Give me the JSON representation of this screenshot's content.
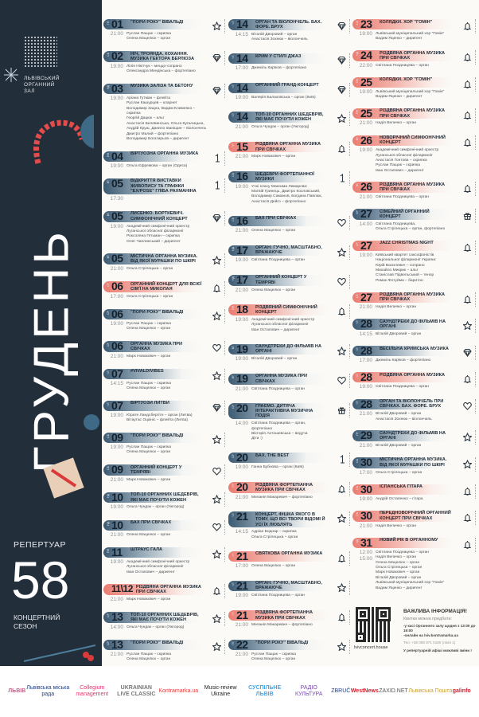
{
  "hall_name": [
    "ЛЬВІВСЬКИЙ",
    "ОРГАННИЙ",
    "ЗАЛ"
  ],
  "month": "ГРУДЕНЬ",
  "repertoire": "РЕПЕРТУАР",
  "season_number": "58",
  "season_label": [
    "КОНЦЕРТНИЙ",
    "СЕЗОН"
  ],
  "colors": {
    "panel": "#232e3b",
    "regular": "#3c5a72",
    "festive": "#ea7d72"
  },
  "columns": [
    [
      {
        "d": "01",
        "wd": "ПТ",
        "t": [
          "21:00"
        ],
        "title": "\"ПОРИ РОКУ\" ВІВАЛЬДІ",
        "perf": [
          "Руслан Пащак – скрипка",
          "Олена Мацелюх – орган"
        ],
        "icon": "star"
      },
      {
        "d": "02",
        "wd": "СБ",
        "t": [
          "19:00"
        ],
        "title": "НІЧ, ТРОЯНДА, КОХАННЯ. МУЗИКА ГЕКТОРА БЕРЛІОЗА",
        "perf": [
          "Лілія Нікітчук – меццо-сопрано",
          "Олександра Мендінська – фортепіано"
        ],
        "icon": "diamond"
      },
      {
        "d": "03",
        "wd": "НД",
        "t": [
          "19:00"
        ],
        "title": "МУЗИКА ЗАЛІЗА ТА БЕТОНУ",
        "perf": [
          "Аріана Гутман – флейта",
          "Руслан Кашурцев – кларнет",
          "Володимир Зацна, Вадим Клименко – скрипка",
          "Георгій Дацюк – альт",
          "Анастасія Белевинська, Ольга Кульчицька,",
          "Андрій Круш, Данило Іваніщин – віолончель",
          "Дмитро Малий – фортепіано",
          "Володимир Богатирьов – диригент"
        ],
        "icon": "diamond"
      },
      {
        "d": "04",
        "wd": "ПН",
        "t": [
          "19:00"
        ],
        "title": "ВІРТУОЗНА ОРГАННА МУЗИКА",
        "perf": [
          "Ольга Єфремова – орган (Одеса)"
        ],
        "icon": "one"
      },
      {
        "d": "05",
        "wd": "ВТ",
        "t": [
          "17:30"
        ],
        "title": "ВІДКРИТТЯ ВИСТАВКИ ЖИВОПИСУ ТА ГРАФІКИ \"EX/POSE\" ГЛІБА РАХМАНІНА",
        "perf": [],
        "icon": "one"
      },
      {
        "d": "05",
        "wd": "ВТ",
        "t": [
          "19:00"
        ],
        "title": "ЛИСЕНКО. БОРТКЕВИЧ. СИМФОНІЧНИЙ КОНЦЕРТ",
        "perf": [
          "Академічний симфонічний оркестр",
          "Луганської обласної філармонії",
          "Роксоляна Гетьман – скрипка",
          "Олег Чаплинський – диригент"
        ],
        "icon": "diamond"
      },
      {
        "d": "05",
        "wd": "ВТ",
        "t": [
          "21:00"
        ],
        "title": "МІСТИЧНА ОРГАННА МУЗИКА. ВІД ЯКОЇ МУРАШКИ ПО ШКІРІ",
        "perf": [
          "Ольга Стрілецька – орган"
        ],
        "icon": "star"
      },
      {
        "d": "06",
        "wd": "СР",
        "t": [
          "17:00"
        ],
        "title": "ОРГАННИЙ КОНЦЕРТ ДЛЯ ВСІЄЇ СІМ'Ї НА МИКОЛАЯ",
        "perf": [
          "Ольга Стрілецька – орган"
        ],
        "icon": "bell",
        "red": true
      },
      {
        "d": "06",
        "wd": "СР",
        "t": [
          "19:00"
        ],
        "title": "\"ПОРИ РОКУ\" ВІВАЛЬДІ",
        "perf": [
          "Руслан Пащак – скрипка",
          "Олена Мацелюх – орган"
        ],
        "icon": "star"
      },
      {
        "d": "06",
        "wd": "СР",
        "t": [
          "21:00"
        ],
        "title": "ОРГАННА МУЗИКА ПРИ СВІЧКАХ",
        "perf": [
          "Марк Новакович – орган"
        ],
        "icon": "heart"
      },
      {
        "d": "07",
        "wd": "ЧТ",
        "t": [
          "14:15"
        ],
        "title": "#VIVALDIVIBES",
        "perf": [
          "Руслан Пащак – скрипка",
          "Олена Мацелюх – орган"
        ],
        "icon": "star"
      },
      {
        "d": "07",
        "wd": "ЧТ",
        "t": [
          "19:00"
        ],
        "title": "ВІРТУОЗИ ЛИТВИ",
        "perf": [
          "Юрате Ландсбергіте – орган (Литва)",
          "Вітаутас Оцкініс – флейта (Литва)"
        ],
        "icon": "diamond"
      },
      {
        "d": "09",
        "wd": "СБ",
        "t": [
          "19:00"
        ],
        "title": "\"ПОРИ РОКУ\" ВІВАЛЬДІ",
        "perf": [
          "Руслан Пащак – скрипка",
          "Олена Мацелюх – орган"
        ],
        "icon": "star"
      },
      {
        "d": "09",
        "wd": "СБ",
        "t": [
          "21:00"
        ],
        "title": "ОРГАННИЙ КОНЦЕРТ У ТЕМРЯВІ",
        "perf": [
          "Марк Новакович – орган"
        ],
        "icon": "heart"
      },
      {
        "d": "10",
        "wd": "НД",
        "t": [
          "19:00"
        ],
        "title": "ТОП-10 ОРГАННИХ ШЕДЕВРІВ, ЯКІ МАЄ ПОЧУТИ КОЖЕН",
        "perf": [
          "Ольга Чундак – орган (Ужгород)"
        ],
        "icon": "star"
      },
      {
        "d": "10",
        "wd": "НД",
        "t": [
          "21:00"
        ],
        "title": "БАХ ПРИ СВІЧКАХ",
        "perf": [
          "Олена Мацелюх – орган"
        ],
        "icon": "heart"
      },
      {
        "d": "11",
        "wd": "ПН",
        "t": [
          "19:00"
        ],
        "title": "ШТРАУС ГАЛА",
        "perf": [
          "Академічний симфонічний оркестр",
          "Луганської обласної філармонії",
          "Іван Остапович – диригент"
        ],
        "icon": "star"
      },
      {
        "d": "11\\12",
        "wd": "",
        "t": [
          "21:00"
        ],
        "title": "РІЗДВЯНА ОРГАННА МУЗИКА ПРИ СВІЧКАХ",
        "perf": [
          "Марк Новакович – орган"
        ],
        "icon": "bell",
        "red": true
      },
      {
        "d": "13",
        "wd": "СР",
        "t": [
          "14:00"
        ],
        "title": "ТОП-10 ОРГАННИХ ШЕДЕВРІВ, ЯКІ МАЄ ПОЧУТИ КОЖЕН",
        "perf": [
          "Ольга Чундак – орган (Ужгород)"
        ],
        "icon": "star"
      },
      {
        "d": "13",
        "wd": "СР",
        "t": [
          "21:00"
        ],
        "title": "\"ПОРИ РОКУ\" ВІВАЛЬДІ",
        "perf": [
          "Руслан Пащак – скрипка",
          "Олена Мацелюх – орган"
        ],
        "icon": "star"
      }
    ],
    [
      {
        "d": "14",
        "wd": "ЧТ",
        "t": [
          "14:15"
        ],
        "title": "ОРГАН ТА ВІОЛОНЧЕЛЬ. БАХ. ФОРЕ. БРУХ",
        "perf": [
          "Віталій Дворовий – орган",
          "Анастасія Зохнюк – віолончель"
        ],
        "icon": "diamond"
      },
      {
        "d": "14",
        "wd": "ЧТ",
        "t": [
          "17:00"
        ],
        "title": "КРИМ У СТИЛІ ДЖАЗ",
        "perf": [
          "Джеміль Карїков – фортепіано"
        ],
        "icon": "diamond"
      },
      {
        "d": "14",
        "wd": "ЧТ",
        "t": [
          "19:00"
        ],
        "title": "ОРГАННИЙ ГРАНД-КОНЦЕРТ",
        "perf": [
          "Валерія Балаховська – орган (Київ)"
        ],
        "icon": "diamond"
      },
      {
        "d": "14",
        "wd": "ЧТ",
        "t": [
          "21:00"
        ],
        "title": "ТОП-10 ОРГАННИХ ШЕДЕВРІВ, ЯКІ МАЄ ПОЧУТИ КОЖЕН",
        "perf": [
          "Ольга Чундак – орган (Ужгород)"
        ],
        "icon": "star"
      },
      {
        "d": "15",
        "wd": "ПТ",
        "t": [
          "21:00"
        ],
        "title": "РІЗДВЯНА ОРГАННА МУЗИКА ПРИ СВІЧКАХ",
        "perf": [
          "Марк Новакович – орган"
        ],
        "icon": "bell",
        "red": true
      },
      {
        "d": "16",
        "wd": "СБ",
        "t": [
          "19:00"
        ],
        "title": "ШЕДЕВРИ ФОРТЕПІАННОЇ МУЗИКИ",
        "perf": [
          "Учні класу Максима Лимарєва:",
          "Матвій Гринець, Дмитро Козловський,",
          "Володимир Саманов, Богдана Павлюк,",
          "Анастасія Дейго – фортепіано"
        ],
        "icon": "one"
      },
      {
        "d": "16",
        "wd": "СБ",
        "t": [
          "21:00"
        ],
        "title": "БАХ ПРИ СВІЧКАХ",
        "perf": [
          "Олена Мацелюх – орган"
        ],
        "icon": "heart"
      },
      {
        "d": "17",
        "wd": "НД",
        "t": [
          "19:00"
        ],
        "title": "ОРГАН: ГУЧНО, МАСШТАБНО, ВРАЖАЮЧЕ",
        "perf": [
          "Світлана Поздницева – орган"
        ],
        "icon": "star"
      },
      {
        "d": "17",
        "wd": "НД",
        "t": [
          "21:00"
        ],
        "title": "ОРГАННИЙ КОНЦЕРТ У ТЕМРЯВІ",
        "perf": [
          "Олена Мацелюх – орган"
        ],
        "icon": "heart"
      },
      {
        "d": "18",
        "wd": "ПН",
        "t": [
          "19:00"
        ],
        "title": "РІЗДВЯНИЙ СИМФОНІЧНИЙ КОНЦЕРТ",
        "perf": [
          "Академічний симфонічний оркестр",
          "Луганської обласної філармонії",
          "Іван Остапович – диригент"
        ],
        "icon": "bell",
        "red": true
      },
      {
        "d": "19",
        "wd": "ВТ",
        "t": [
          "19:00"
        ],
        "title": "САУНДТРЕКИ ДО ФІЛЬМІВ НА ОРГАНІ",
        "perf": [
          "Віталій Дворовий – орган"
        ],
        "icon": "star"
      },
      {
        "d": "19",
        "wd": "ВТ",
        "t": [
          "21:00"
        ],
        "title": "ОРГАННА МУЗИКА ПРИ СВІЧКАХ",
        "perf": [
          "Світлана Поздницева – орган"
        ],
        "icon": "heart"
      },
      {
        "d": "20",
        "wd": "СР",
        "t": [
          "14:00"
        ],
        "title": "ГРАЄМО. ДИТЯЧА ІНТЕРАКТИВНА МУЗИЧНА ПОДІЯ",
        "perf": [
          "Світлана Поздницева – орган,",
          "фортепіано",
          "Вікторія Антошевська – ведуча",
          "Діти :)"
        ],
        "icon": "gift"
      },
      {
        "d": "20",
        "wd": "СР",
        "t": [
          "19:00"
        ],
        "title": "БАХ. THE BEST",
        "perf": [
          "Ганна Бубнова – орган (Київ)"
        ],
        "icon": "one"
      },
      {
        "d": "20",
        "wd": "СР",
        "t": [
          "21:00"
        ],
        "title": "РІЗДВЯНА ФОРТЕПІАННА МУЗИКА ПРИ СВІЧКАХ",
        "perf": [
          "Меланія Макаревич – фортепіано"
        ],
        "icon": "bell",
        "red": true
      },
      {
        "d": "21",
        "wd": "ЧТ",
        "t": [
          "14:15"
        ],
        "title": "КОНЦЕРТ, ФІШКА ЯКОГО В ТОМУ, ЩО ВСІ ТВОРИ ВІДОМІ Й УСІ ЇХ ЛЮБЛЯТЬ",
        "perf": [
          "Адріан Боднар – скрипка",
          "Ольга Стрілецька – орган"
        ],
        "icon": "star"
      },
      {
        "d": "21",
        "wd": "ЧТ",
        "t": [
          "17:00"
        ],
        "title": "СВЯТКОВА ОРГАННА МУЗИКА",
        "perf": [
          "Олена Мацелюх – орган"
        ],
        "icon": "bell",
        "red": true
      },
      {
        "d": "21",
        "wd": "ЧТ",
        "t": [
          "19:00"
        ],
        "title": "ОРГАН: ГУЧНО, МАСШТАБНО, ВРАЖАЮЧЕ",
        "perf": [
          "Світлана Поздницева – орган"
        ],
        "icon": "star"
      },
      {
        "d": "21",
        "wd": "ЧТ",
        "t": [
          "21:00"
        ],
        "title": "РІЗДВЯНА ФОРТЕПІАННА МУЗИКА ПРИ СВІЧКАХ",
        "perf": [
          "Меланія Макаревич – фортепіано"
        ],
        "icon": "bell",
        "red": true
      },
      {
        "d": "22",
        "wd": "ПТ",
        "t": [
          "21:00"
        ],
        "title": "\"ПОРИ РОКУ\" ВІВАЛЬДІ",
        "perf": [
          "Руслан Пащак – скрипка",
          "Олена Мацелюх – орган"
        ],
        "icon": "star"
      }
    ],
    [
      {
        "d": "23",
        "wd": "СБ",
        "t": [
          "19:00"
        ],
        "title": "КОЛЯДКИ. ХОР \"ГОМІН\"",
        "perf": [
          "Львівський муніципальний хор \"Гомін\"",
          "Вадим Яценко – диригент"
        ],
        "icon": "bell",
        "red": true
      },
      {
        "d": "24",
        "wd": "НД",
        "t": [
          "22:00"
        ],
        "title": "РІЗДВЯНА ОРГАННА МУЗИКА ПРИ СВІЧКАХ",
        "perf": [
          "Світлана Поздницева – орган"
        ],
        "icon": "bell",
        "red": true
      },
      {
        "d": "25",
        "wd": "ПН",
        "t": [
          "19:00"
        ],
        "title": "КОЛЯДКИ. ХОР \"ГОМІН\"",
        "perf": [
          "Львівський муніципальний хор \"Гомін\"",
          "Вадим Яценко – диригент"
        ],
        "icon": "bell",
        "red": true
      },
      {
        "d": "25",
        "wd": "ПН",
        "t": [
          "21:00"
        ],
        "title": "РІЗДВЯНА ОРГАННА МУЗИКА ПРИ СВІЧКАХ",
        "perf": [
          "Надія Величко – орган"
        ],
        "icon": "bell",
        "red": true
      },
      {
        "d": "26",
        "wd": "ВТ",
        "t": [
          "19:00"
        ],
        "title": "НОВОРІЧНИЙ СИМФОНІЧНИЙ КОНЦЕРТ",
        "perf": [
          "Академічний симфонічний оркестр",
          "Луганської обласної філармонії",
          "Анастасія Гонтова – скрипка",
          "Руслан Пащак – скрипка",
          "Іван Остапович – диригент"
        ],
        "icon": "bell",
        "red": true
      },
      {
        "d": "26",
        "wd": "ВТ",
        "t": [
          "21:00"
        ],
        "title": "РІЗДВЯНА ОРГАННА МУЗИКА ПРИ СВІЧКАХ",
        "perf": [
          "Світлана Поздницева – орган"
        ],
        "icon": "bell",
        "red": true
      },
      {
        "d": "27",
        "wd": "СР",
        "t": [
          "14:00"
        ],
        "title": "СІМЕЙНИЙ ОРГАННИЙ КОНЦЕРТ",
        "perf": [
          "Світлана Поздницева,",
          "Ольга Стрілецька – орган, фортепіано"
        ],
        "icon": "gift"
      },
      {
        "d": "27",
        "wd": "СР",
        "t": [
          "19:00"
        ],
        "title": "JAZZ CHRISTMAS NIGHT",
        "perf": [
          "Київський квартет саксофоністів",
          "Національної філармонії України:",
          "Юрій Василевич – сопрано",
          "Михайло Микрик – альт",
          "Станіслав Підвельський – тенор",
          "Роман Фотуйма – баритон"
        ],
        "icon": "bell",
        "red": true
      },
      {
        "d": "27",
        "wd": "СР",
        "t": [
          "21:00"
        ],
        "title": "РІЗДВЯНА ОРГАННА МУЗИКА ПРИ СВІЧКАХ",
        "perf": [
          "Надія Величко – орган"
        ],
        "icon": "bell",
        "red": true
      },
      {
        "d": "28",
        "wd": "ЧТ",
        "t": [
          "14:15"
        ],
        "title": "САУНДТРЕКИ ДО ФІЛЬМІВ НА ОРГАНІ",
        "perf": [
          "Віталій Дворовий – орган"
        ],
        "icon": "star"
      },
      {
        "d": "28",
        "wd": "ЧТ",
        "t": [
          "17:00"
        ],
        "title": "ВЕСІЛЬНА КРИМСЬКА МУЗИКА",
        "perf": [
          "Джеміль Карїков – фортепіано"
        ],
        "icon": "diamond"
      },
      {
        "d": "28",
        "wd": "ЧТ",
        "t": [
          "19:00"
        ],
        "title": "РІЗДВЯНА ОРГАННА МУЗИКА",
        "perf": [
          "Світлана Поздницева – орган"
        ],
        "icon": "bell",
        "red": true
      },
      {
        "d": "28",
        "wd": "ЧТ",
        "t": [
          "21:00"
        ],
        "title": "ОРГАН ТА ВІОЛОНЧЕЛЬ ПРИ СВІЧКАХ. БАХ. ФОРЕ. БРУХ",
        "perf": [
          "Віталій Дворовий – орган",
          "Анастасія Зохнюк – віолончель"
        ],
        "icon": "heart"
      },
      {
        "d": "29",
        "wd": "ПТ",
        "t": [
          "21:00"
        ],
        "title": "САУНДТРЕКИ ДО ФІЛЬМІВ НА ОРГАНІ",
        "perf": [
          "Віталій Дворовий – орган"
        ],
        "icon": "star"
      },
      {
        "d": "30",
        "wd": "СБ",
        "t": [
          "17:00"
        ],
        "title": "МІСТИЧНА ОРГАННА МУЗИКА. ВІД ЯКОЇ МУРАШКИ ПО ШКІРІ",
        "perf": [
          "Ольга Стрілецька – орган"
        ],
        "icon": "star"
      },
      {
        "d": "30",
        "wd": "СБ",
        "t": [
          "19:00"
        ],
        "title": "ІСПАНСЬКА ГІТАРА",
        "perf": [
          "Андрій Остапенко – гітара"
        ],
        "icon": "bell",
        "red": true
      },
      {
        "d": "30",
        "wd": "СБ",
        "t": [
          "21:00"
        ],
        "title": "ПЕРЕДНОВОРІЧНИЙ ОРГАННИЙ КОНЦЕРТ ПРИ СВІЧКАХ",
        "perf": [
          "Надія Величко – орган"
        ],
        "icon": "bell",
        "red": true
      },
      {
        "d": "31",
        "wd": "НД",
        "t": [
          "12:00",
          "15:00"
        ],
        "title": "НОВИЙ РІК В ОРГАННОМУ",
        "perf": [
          "Світлана Поздницева – орган",
          "Надія Величко – орган",
          "Олена Мацелюх – орган",
          "Ольга Стрілецька – орган",
          "Марк Новакович – орган",
          "Віталій Дворовий – орган",
          "Львівський муніципальний хор \"Гомін\"",
          "Вадим Яценко – диригент"
        ],
        "icon": "bell",
        "red": true
      }
    ]
  ],
  "info": {
    "site": "lvivconcert.house",
    "heading": "ВАЖЛИВА ІНФОРМАЦІЯ!",
    "tickets": "Квитки можна придбати:",
    "box_office": "-у касі Органного залу щодня з 13:00 до 19:00",
    "online": "-онлайн на lviv.kontramarka.ua",
    "phone": "Тел: +38 098 871 0180 (лінія 1)",
    "note": "У репертуарній афіші можливі зміни !"
  },
  "partners": [
    "ЛЬВІВ",
    "Львівська міська рада",
    "Collegium management",
    "UKRAINIAN LIVE CLASSIC",
    "Kontramarka.ua",
    "Music-review Ukraine",
    "СУСПІЛЬНЕ ЛЬВІВ",
    "РАДІО КУЛЬТУРА",
    "ZBRUČ",
    "WestNews",
    "ZAXID.NET",
    "Львівська Пошта",
    "galinfo"
  ]
}
